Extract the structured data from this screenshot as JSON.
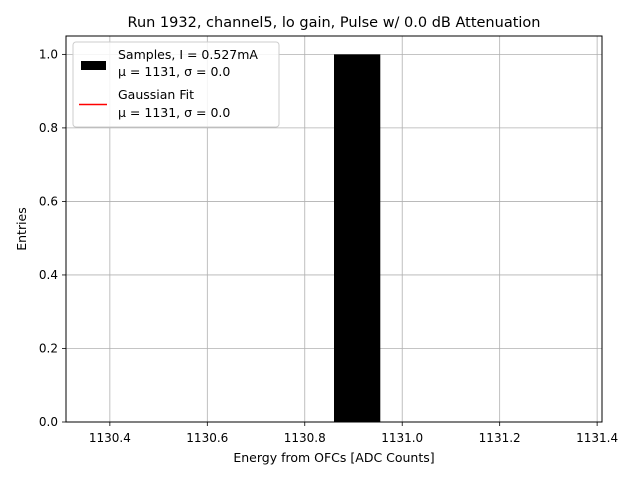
{
  "chart_data": {
    "type": "bar",
    "title": "Run 1932, channel5, lo gain, Pulse w/ 0.0 dB Attenuation",
    "xlabel": "Energy from OFCs [ADC Counts]",
    "ylabel": "Entries",
    "xlim": [
      1130.31,
      1131.41
    ],
    "ylim": [
      0,
      1.05
    ],
    "xticks": [
      "1130.4",
      "1130.6",
      "1130.8",
      "1131.0",
      "1131.2",
      "1131.4"
    ],
    "xtick_values": [
      1130.4,
      1130.6,
      1130.8,
      1131.0,
      1131.2,
      1131.4
    ],
    "yticks": [
      "0.0",
      "0.2",
      "0.4",
      "0.6",
      "0.8",
      "1.0"
    ],
    "ytick_values": [
      0,
      0.2,
      0.4,
      0.6,
      0.8,
      1.0
    ],
    "grid": true,
    "legend_position": "top-left",
    "series": [
      {
        "name": "Samples, I = 0.527mA",
        "stats": "μ = 1131, σ = 0.0",
        "kind": "histogram",
        "color": "#000000",
        "bins": [
          {
            "x0": 1130.86,
            "x1": 1130.955,
            "value": 1.0
          }
        ]
      },
      {
        "name": "Gaussian Fit",
        "stats": "μ = 1131, σ = 0.0",
        "kind": "line",
        "color": "#ff0000"
      }
    ]
  }
}
